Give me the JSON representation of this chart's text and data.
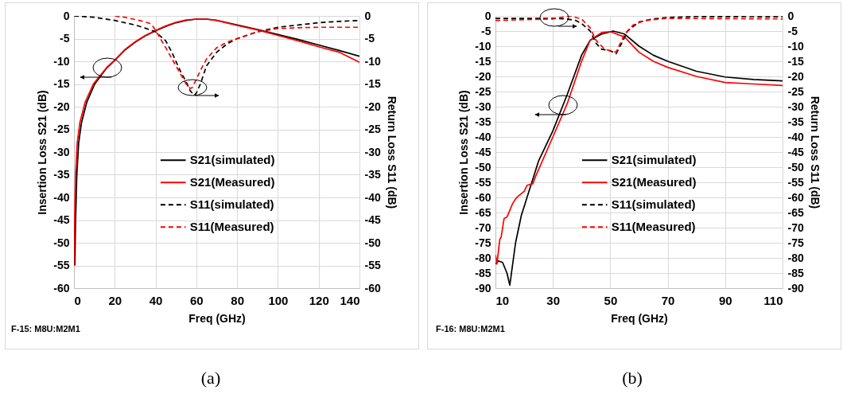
{
  "chart_data": [
    {
      "type": "line",
      "xlabel": "Freq (GHz)",
      "ylabel": "Insertion Loss S21 (dB)",
      "y2label": "Return Loss S11 (dB)",
      "xlim": [
        0,
        140
      ],
      "xticks": [
        0,
        20,
        40,
        60,
        80,
        100,
        120,
        140
      ],
      "ylim": [
        -60,
        0
      ],
      "yticks": [
        -60,
        -55,
        -50,
        -45,
        -40,
        -35,
        -30,
        -25,
        -20,
        -15,
        -10,
        -5,
        0
      ],
      "y2lim": [
        -60,
        0
      ],
      "y2ticks": [
        -60,
        -55,
        -50,
        -45,
        -40,
        -35,
        -30,
        -25,
        -20,
        -15,
        -10,
        -5,
        0
      ],
      "grid": true,
      "legend": "right",
      "annotations": [
        "F-15: M8U:M2M1",
        "(a)"
      ],
      "series": [
        {
          "name": "S21(simulated)",
          "color": "#000000",
          "line_style": "solid",
          "x": [
            0.4,
            0.8,
            1.4,
            2.3,
            3.7,
            6.3,
            10.2,
            16,
            20,
            25,
            30,
            35,
            40,
            45,
            50,
            55,
            60,
            65,
            70,
            80,
            90,
            100,
            110,
            120,
            130,
            140
          ],
          "values": [
            -55,
            -45,
            -35,
            -28,
            -23.5,
            -19,
            -15,
            -11.5,
            -9.8,
            -7.5,
            -5.8,
            -4.4,
            -3.3,
            -2.3,
            -1.5,
            -1,
            -0.7,
            -0.7,
            -1,
            -2,
            -3,
            -4.1,
            -5.2,
            -6.4,
            -7.6,
            -8.9
          ]
        },
        {
          "name": "S21(Measured)",
          "color": "#ff0000",
          "line_style": "solid",
          "x": [
            0,
            0.3,
            0.8,
            1.6,
            2.9,
            5.5,
            9.5,
            16,
            20,
            25,
            30,
            35,
            40,
            45,
            50,
            55,
            60,
            65,
            70,
            80,
            90,
            100,
            110,
            120,
            130,
            140
          ],
          "values": [
            -55,
            -45,
            -35,
            -28,
            -23.5,
            -19,
            -15,
            -11.4,
            -9.7,
            -7.4,
            -5.7,
            -4.3,
            -3.2,
            -2.2,
            -1.4,
            -0.9,
            -0.7,
            -0.7,
            -1,
            -2.1,
            -3.1,
            -4.3,
            -5.5,
            -6.8,
            -8,
            -10.2
          ]
        },
        {
          "name": "S11(simulated)",
          "color": "#000000",
          "line_style": "dashed",
          "axis": "y2",
          "x": [
            0,
            10,
            20,
            30,
            35,
            40,
            45,
            48,
            52,
            55,
            57,
            59,
            60,
            62,
            65,
            70,
            75,
            80,
            90,
            100,
            110,
            120,
            130,
            140
          ],
          "values": [
            0,
            -0.3,
            -1,
            -2,
            -2.7,
            -3.5,
            -5.5,
            -8,
            -12,
            -14.5,
            -16.5,
            -17.5,
            -17,
            -15,
            -11,
            -8,
            -6.2,
            -5,
            -3.5,
            -2.5,
            -2,
            -1.5,
            -1.2,
            -1
          ]
        },
        {
          "name": "S11(Measured)",
          "color": "#ff0000",
          "line_style": "dashed",
          "axis": "y2",
          "x": [
            20,
            25,
            30,
            35,
            38,
            40,
            45,
            50,
            55,
            57,
            58,
            60,
            62,
            65,
            70,
            75,
            80,
            90,
            100,
            110,
            120,
            130,
            139,
            140
          ],
          "values": [
            0,
            -0.3,
            -0.8,
            -1.3,
            -1.8,
            -3.2,
            -7,
            -11,
            -15,
            -16,
            -15.8,
            -14,
            -12,
            -9.5,
            -7,
            -5.8,
            -5,
            -3.5,
            -2.8,
            -2.6,
            -2.5,
            -2.5,
            -2.5,
            -3
          ]
        }
      ]
    },
    {
      "type": "line",
      "xlabel": "Freq (GHz)",
      "ylabel": "Insertion Loss S21 (dB)",
      "y2label": "Return Loss S11 (dB)",
      "xlim": [
        10,
        110
      ],
      "xticks": [
        10,
        30,
        50,
        70,
        90,
        110
      ],
      "ylim": [
        -90,
        0
      ],
      "yticks": [
        -90,
        -85,
        -80,
        -75,
        -70,
        -65,
        -60,
        -55,
        -50,
        -45,
        -40,
        -35,
        -30,
        -25,
        -20,
        -15,
        -10,
        -5,
        0
      ],
      "y2lim": [
        -90,
        0
      ],
      "y2ticks": [
        -90,
        -85,
        -80,
        -75,
        -70,
        -65,
        -60,
        -55,
        -50,
        -45,
        -40,
        -35,
        -30,
        -25,
        -20,
        -15,
        -10,
        -5,
        0
      ],
      "grid": true,
      "legend": "right",
      "annotations": [
        "F-16: M8U:M2M1",
        "(b)"
      ],
      "series": [
        {
          "name": "S21(simulated)",
          "color": "#000000",
          "line_style": "solid",
          "x": [
            10,
            11,
            12.5,
            14,
            15,
            16,
            17,
            19,
            22,
            25,
            30,
            35,
            40,
            43,
            47,
            51,
            55,
            60,
            65,
            70,
            80,
            90,
            100,
            110
          ],
          "values": [
            -82,
            -81,
            -81.5,
            -85,
            -89,
            -82,
            -75,
            -66,
            -57,
            -48,
            -38,
            -26,
            -13,
            -8,
            -6,
            -5,
            -6,
            -10,
            -13,
            -15,
            -18.3,
            -20.2,
            -21,
            -21.5
          ]
        },
        {
          "name": "S21(Measured)",
          "color": "#ff0000",
          "line_style": "solid",
          "x": [
            10,
            10.5,
            11.5,
            12,
            13,
            14,
            16,
            17,
            18,
            20,
            21,
            23,
            24,
            30,
            35,
            40,
            43,
            47,
            50,
            55,
            60,
            65,
            70,
            80,
            90,
            100,
            110
          ],
          "values": [
            -79,
            -82,
            -74,
            -73,
            -67,
            -66.5,
            -62,
            -60.5,
            -59.5,
            -58,
            -56,
            -55.5,
            -53,
            -40,
            -29,
            -15,
            -8,
            -5.5,
            -5.2,
            -7,
            -12,
            -15,
            -17,
            -20,
            -22,
            -22.5,
            -23
          ]
        },
        {
          "name": "S11(simulated)",
          "color": "#000000",
          "line_style": "dashed",
          "axis": "y2",
          "x": [
            10,
            30,
            35,
            38,
            40,
            43,
            45,
            47,
            50,
            52,
            54,
            56,
            60,
            65,
            70,
            80,
            110
          ],
          "values": [
            -0.8,
            -0.8,
            -1,
            -1.5,
            -2.5,
            -5,
            -9,
            -11,
            -11.5,
            -12.5,
            -9,
            -5,
            -2,
            -1,
            -0.5,
            -0.2,
            -0.3
          ]
        },
        {
          "name": "S11(Measured)",
          "color": "#ff0000",
          "line_style": "dashed",
          "axis": "y2",
          "x": [
            10,
            30,
            36,
            40,
            43,
            45,
            48,
            52,
            53,
            55,
            58,
            62,
            70,
            110
          ],
          "values": [
            -1.5,
            -1,
            0,
            -1,
            -4,
            -8,
            -11,
            -12,
            -10,
            -6,
            -3,
            -1.5,
            -0.8,
            -1
          ]
        }
      ]
    }
  ]
}
